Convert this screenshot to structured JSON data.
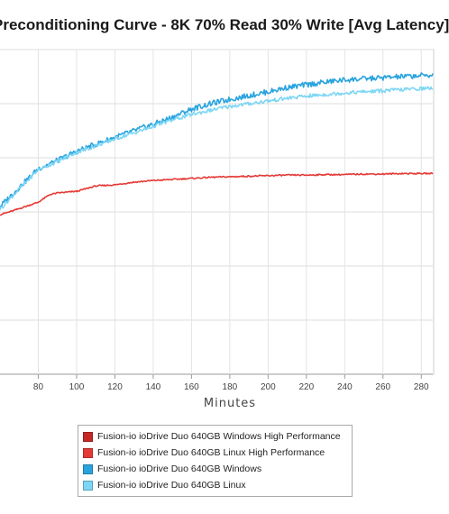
{
  "chart_data": {
    "type": "line",
    "title": "Preconditioning Curve - 8K 70% Read 30% Write [Avg Latency]",
    "xlabel": "Minutes",
    "ylabel": "",
    "x_ticks": [
      80,
      100,
      120,
      140,
      160,
      180,
      200,
      220,
      240,
      260,
      280
    ],
    "xlim": [
      60,
      286
    ],
    "ylim": [
      0,
      6
    ],
    "grid": true,
    "legend_placement": "bottom-center",
    "series": [
      {
        "name": "Fusion-io ioDrive Duo 640GB Windows High Performance",
        "color": "#c62828",
        "x": [],
        "y": []
      },
      {
        "name": "Fusion-io ioDrive Duo 640GB Linux High Performance",
        "color": "#e53935",
        "x": [
          60,
          65,
          70,
          75,
          80,
          83,
          86,
          90,
          100,
          110,
          120,
          130,
          140,
          150,
          160,
          170,
          180,
          190,
          200,
          210,
          220,
          230,
          240,
          250,
          260,
          270,
          280,
          286
        ],
        "y": [
          2.95,
          3.0,
          3.06,
          3.12,
          3.18,
          3.25,
          3.32,
          3.35,
          3.38,
          3.48,
          3.5,
          3.55,
          3.58,
          3.6,
          3.62,
          3.64,
          3.65,
          3.66,
          3.67,
          3.68,
          3.68,
          3.69,
          3.69,
          3.7,
          3.7,
          3.71,
          3.71,
          3.71
        ]
      },
      {
        "name": "Fusion-io ioDrive Duo 640GB Windows",
        "color": "#29a3de",
        "x": [
          60,
          70,
          80,
          90,
          100,
          110,
          120,
          130,
          140,
          150,
          160,
          170,
          180,
          190,
          200,
          210,
          220,
          230,
          240,
          250,
          260,
          270,
          280,
          286
        ],
        "y": [
          3.1,
          3.45,
          3.8,
          3.95,
          4.12,
          4.25,
          4.38,
          4.5,
          4.62,
          4.75,
          4.9,
          5.0,
          5.08,
          5.15,
          5.22,
          5.3,
          5.35,
          5.4,
          5.44,
          5.46,
          5.48,
          5.5,
          5.52,
          5.53
        ]
      },
      {
        "name": "Fusion-io ioDrive Duo 640GB Linux",
        "color": "#7dd6f5",
        "x": [
          60,
          70,
          80,
          90,
          100,
          110,
          120,
          130,
          140,
          150,
          160,
          170,
          180,
          190,
          200,
          210,
          220,
          230,
          240,
          250,
          260,
          270,
          280,
          286
        ],
        "y": [
          3.05,
          3.42,
          3.78,
          3.93,
          4.1,
          4.22,
          4.35,
          4.46,
          4.58,
          4.7,
          4.8,
          4.88,
          4.95,
          5.0,
          5.05,
          5.1,
          5.14,
          5.17,
          5.2,
          5.22,
          5.24,
          5.26,
          5.28,
          5.29
        ]
      }
    ]
  }
}
